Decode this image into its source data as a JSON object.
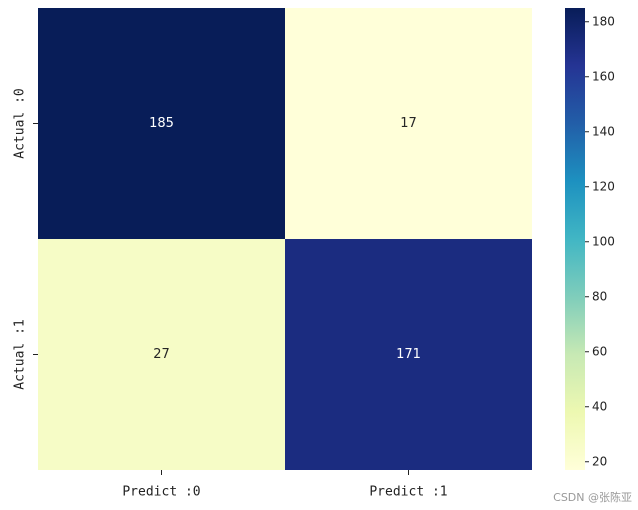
{
  "chart_data": {
    "type": "heatmap",
    "x_categories": [
      "Predict :0",
      "Predict :1"
    ],
    "y_categories": [
      "Actual :0",
      "Actual :1"
    ],
    "values": [
      [
        185,
        17
      ],
      [
        27,
        171
      ]
    ],
    "colormap": "YlGnBu",
    "clim": [
      17,
      185
    ],
    "cticks": [
      20,
      40,
      60,
      80,
      100,
      120,
      140,
      160,
      180
    ],
    "watermark": "CSDN @张陈亚"
  }
}
